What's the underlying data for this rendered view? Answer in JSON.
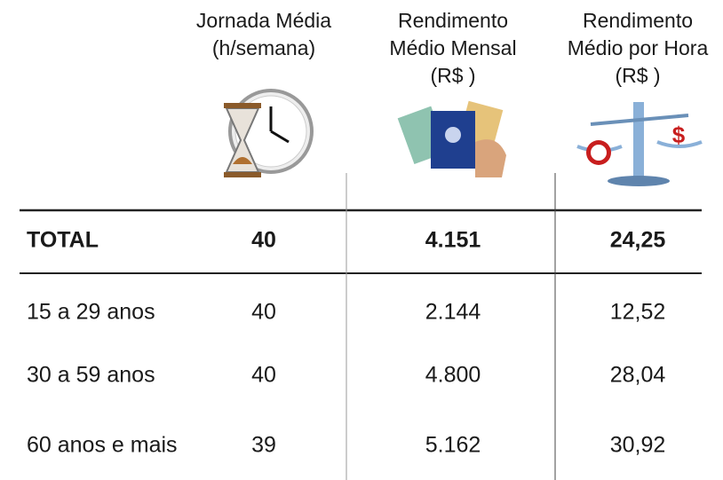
{
  "table": {
    "headers": [
      [
        "Jornada Média",
        "(h/semana)"
      ],
      [
        "Rendimento",
        "Médio Mensal",
        "(R$ )"
      ],
      [
        "Rendimento",
        "Médio por Hora",
        "(R$ )"
      ]
    ],
    "rows": [
      [
        "TOTAL",
        "40",
        "4.151",
        "24,25"
      ],
      [
        "15 a 29 anos",
        "40",
        "2.144",
        "12,52"
      ],
      [
        "30 a 59 anos",
        "40",
        "4.800",
        "28,04"
      ],
      [
        "60 anos e mais",
        "39",
        "5.162",
        "30,92"
      ]
    ]
  }
}
